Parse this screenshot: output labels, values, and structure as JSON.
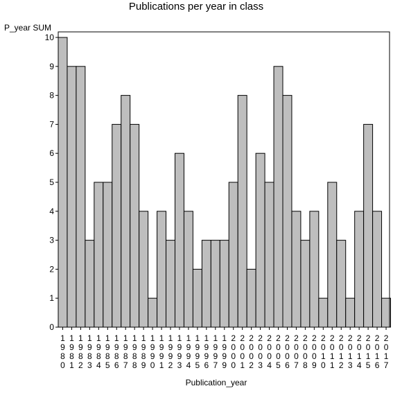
{
  "chart_data": {
    "type": "bar",
    "title": "Publications per year in class",
    "xlabel": "Publication_year",
    "ylabel": "P_year SUM",
    "ylim": [
      0,
      10
    ],
    "yticks": [
      0,
      1,
      2,
      3,
      4,
      5,
      6,
      7,
      8,
      9,
      10
    ],
    "grid": false,
    "categories": [
      "1980",
      "1981",
      "1982",
      "1983",
      "1984",
      "1985",
      "1986",
      "1987",
      "1988",
      "1989",
      "1990",
      "1991",
      "1992",
      "1993",
      "1994",
      "1995",
      "1996",
      "1997",
      "1999",
      "2000",
      "2001",
      "2002",
      "2003",
      "2004",
      "2005",
      "2006",
      "2007",
      "2008",
      "2009",
      "2010",
      "2011",
      "2012",
      "2013",
      "2014",
      "2015",
      "2016",
      "2017"
    ],
    "values": [
      10,
      9,
      9,
      3,
      5,
      5,
      7,
      8,
      7,
      4,
      1,
      4,
      3,
      6,
      4,
      2,
      3,
      3,
      3,
      5,
      8,
      2,
      6,
      5,
      9,
      8,
      4,
      3,
      4,
      1,
      5,
      3,
      1,
      4,
      7,
      4,
      1
    ],
    "colors": {
      "bar_fill": "#bebebe",
      "bar_stroke": "#000000",
      "axis": "#000000"
    }
  }
}
